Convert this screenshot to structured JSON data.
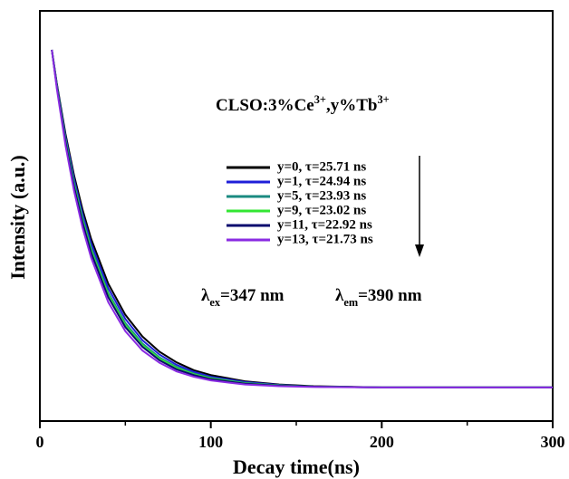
{
  "chart_data": {
    "type": "line",
    "x_label": "Decay time(ns)",
    "y_label": "Intensity (a.u.)",
    "annotation": [
      "CLSO:3%Ce",
      "3+",
      ",y%Tb",
      "3+"
    ],
    "excitation": [
      "λ",
      "ex",
      "=347 nm"
    ],
    "emission": [
      "λ",
      "em",
      "=390 nm"
    ],
    "x": [
      7,
      10,
      15,
      20,
      25,
      30,
      40,
      50,
      60,
      70,
      80,
      90,
      100,
      120,
      140,
      160,
      200,
      250,
      300
    ],
    "series": [
      {
        "name": "y=0, τ=25.71 ns",
        "color": "#000000",
        "values": [
          0.905,
          0.821,
          0.7,
          0.599,
          0.515,
          0.444,
          0.335,
          0.259,
          0.206,
          0.169,
          0.143,
          0.124,
          0.112,
          0.097,
          0.089,
          0.085,
          0.082,
          0.082,
          0.082
        ]
      },
      {
        "name": "y=1, τ=24.94 ns",
        "color": "#1f1fd8",
        "values": [
          0.905,
          0.818,
          0.693,
          0.59,
          0.504,
          0.433,
          0.324,
          0.249,
          0.197,
          0.162,
          0.137,
          0.12,
          0.108,
          0.095,
          0.088,
          0.084,
          0.082,
          0.082,
          0.082
        ]
      },
      {
        "name": "y=5, τ=23.93 ns",
        "color": "#1a8a80",
        "values": [
          0.905,
          0.815,
          0.687,
          0.581,
          0.494,
          0.422,
          0.313,
          0.239,
          0.189,
          0.155,
          0.132,
          0.116,
          0.105,
          0.093,
          0.087,
          0.084,
          0.082,
          0.082,
          0.082
        ]
      },
      {
        "name": "y=9, τ=23.02 ns",
        "color": "#33e633",
        "values": [
          0.905,
          0.814,
          0.684,
          0.576,
          0.489,
          0.416,
          0.308,
          0.234,
          0.185,
          0.152,
          0.129,
          0.114,
          0.104,
          0.092,
          0.087,
          0.084,
          0.082,
          0.082,
          0.082
        ]
      },
      {
        "name": "y=11, τ=22.92 ns",
        "color": "#0a0a6e",
        "values": [
          0.905,
          0.812,
          0.68,
          0.571,
          0.483,
          0.41,
          0.302,
          0.229,
          0.181,
          0.148,
          0.126,
          0.112,
          0.102,
          0.091,
          0.086,
          0.084,
          0.082,
          0.082,
          0.082
        ]
      },
      {
        "name": "y=13, τ=21.73 ns",
        "color": "#8a2be2",
        "values": [
          0.905,
          0.808,
          0.672,
          0.561,
          0.471,
          0.398,
          0.29,
          0.219,
          0.172,
          0.142,
          0.121,
          0.108,
          0.099,
          0.089,
          0.085,
          0.083,
          0.082,
          0.082,
          0.082
        ]
      }
    ],
    "xlim": [
      0,
      300
    ],
    "xticks": [
      0,
      100,
      200,
      300
    ],
    "ylim": [
      0,
      1
    ]
  }
}
